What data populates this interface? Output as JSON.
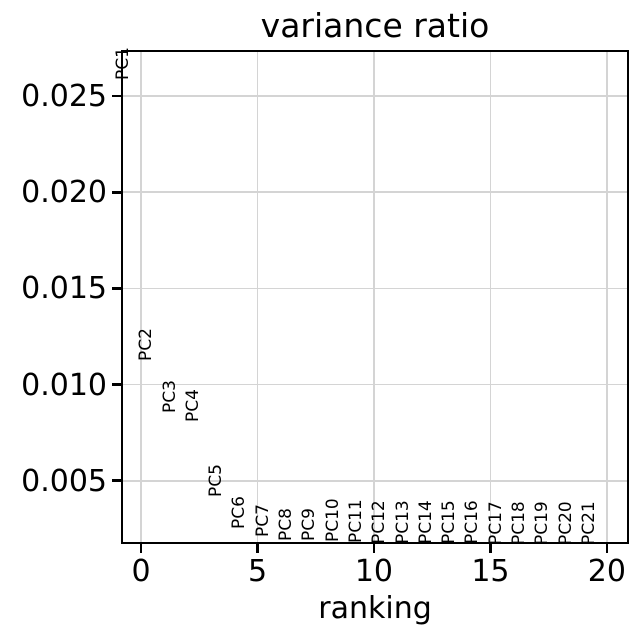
{
  "chart_data": {
    "type": "scatter",
    "title": "variance ratio",
    "xlabel": "ranking",
    "ylabel": "",
    "xlim": [
      -0.86,
      20.95
    ],
    "ylim": [
      0.00171,
      0.0274
    ],
    "x_ticks": [
      0,
      5,
      10,
      15,
      20
    ],
    "x_tick_labels": [
      "0",
      "5",
      "10",
      "15",
      "20"
    ],
    "y_ticks": [
      0.005,
      0.01,
      0.015,
      0.02,
      0.025
    ],
    "y_tick_labels": [
      "0.005",
      "0.010",
      "0.015",
      "0.020",
      "0.025"
    ],
    "grid": true,
    "legend": false,
    "marker_style": "text-labels-only",
    "label_rotation_deg": 90,
    "grid_color": "#d4d4d4",
    "spine_color": "#000000",
    "text_color": "#000000",
    "background_color": "#ffffff",
    "points": [
      {
        "label": "PC1",
        "x": 0,
        "y": 0.026
      },
      {
        "label": "PC2",
        "x": 1,
        "y": 0.0114
      },
      {
        "label": "PC3",
        "x": 2,
        "y": 0.0087
      },
      {
        "label": "PC4",
        "x": 3,
        "y": 0.0082
      },
      {
        "label": "PC5",
        "x": 4,
        "y": 0.0043
      },
      {
        "label": "PC6",
        "x": 5,
        "y": 0.00265
      },
      {
        "label": "PC7",
        "x": 6,
        "y": 0.00225
      },
      {
        "label": "PC8",
        "x": 7,
        "y": 0.00203
      },
      {
        "label": "PC9",
        "x": 8,
        "y": 0.002
      },
      {
        "label": "PC10",
        "x": 9,
        "y": 0.00197
      },
      {
        "label": "PC11",
        "x": 10,
        "y": 0.0019
      },
      {
        "label": "PC12",
        "x": 11,
        "y": 0.00189
      },
      {
        "label": "PC13",
        "x": 12,
        "y": 0.00188
      },
      {
        "label": "PC14",
        "x": 13,
        "y": 0.00187
      },
      {
        "label": "PC15",
        "x": 14,
        "y": 0.00186
      },
      {
        "label": "PC16",
        "x": 15,
        "y": 0.00185
      },
      {
        "label": "PC17",
        "x": 16,
        "y": 0.00184
      },
      {
        "label": "PC18",
        "x": 17,
        "y": 0.00183
      },
      {
        "label": "PC19",
        "x": 18,
        "y": 0.00182
      },
      {
        "label": "PC20",
        "x": 19,
        "y": 0.00181
      },
      {
        "label": "PC21",
        "x": 20,
        "y": 0.0018
      }
    ]
  }
}
